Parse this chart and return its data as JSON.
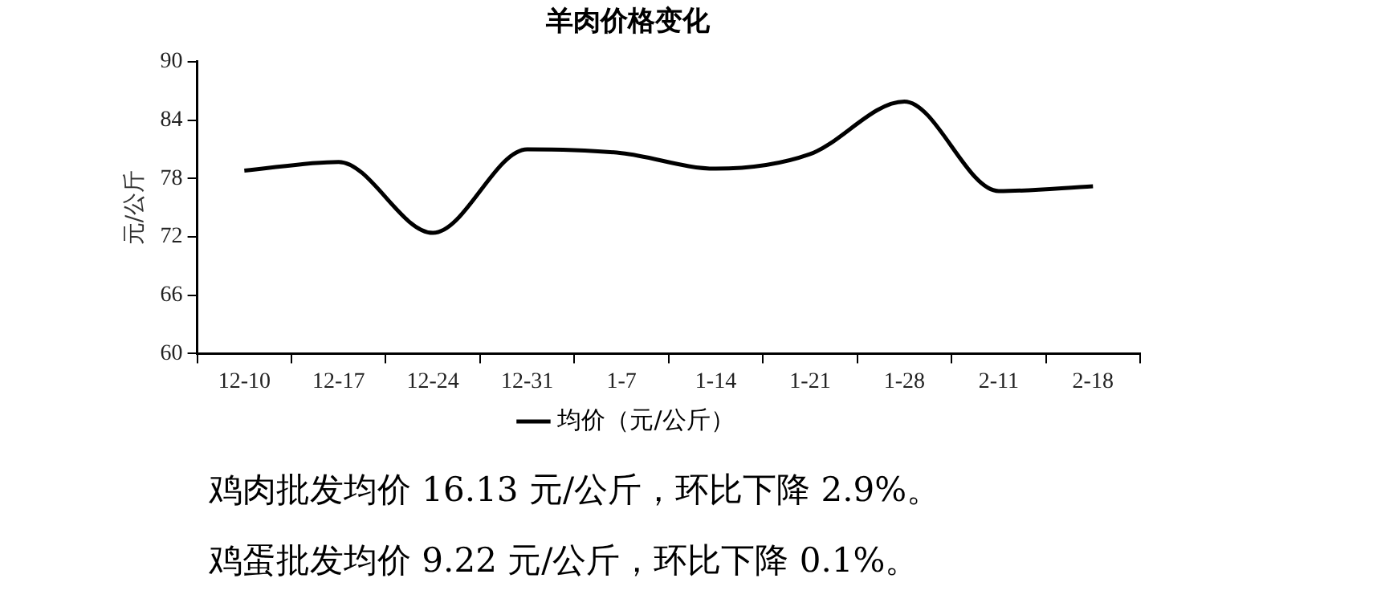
{
  "chart_data": {
    "type": "line",
    "title": "羊肉价格变化",
    "ylabel": "元/公斤",
    "categories": [
      "12-10",
      "12-17",
      "12-24",
      "12-31",
      "1-7",
      "1-14",
      "1-21",
      "1-28",
      "2-11",
      "2-18"
    ],
    "series": [
      {
        "name": "均价（元/公斤）",
        "color": "#000000",
        "values": [
          78.8,
          79.7,
          72.4,
          81.0,
          80.6,
          79.0,
          80.5,
          85.9,
          76.7,
          77.2
        ]
      }
    ],
    "ylim": [
      60,
      90
    ],
    "yticks": [
      60,
      66,
      72,
      78,
      84,
      90
    ],
    "grid": false,
    "legend": "bottom",
    "marker": "none",
    "line_style": "solid",
    "annotations": [
      "鸡肉批发均价 16.13 元/公斤，环比下降 2.9%。",
      "鸡蛋批发均价 9.22 元/公斤，环比下降 0.1%。"
    ]
  }
}
